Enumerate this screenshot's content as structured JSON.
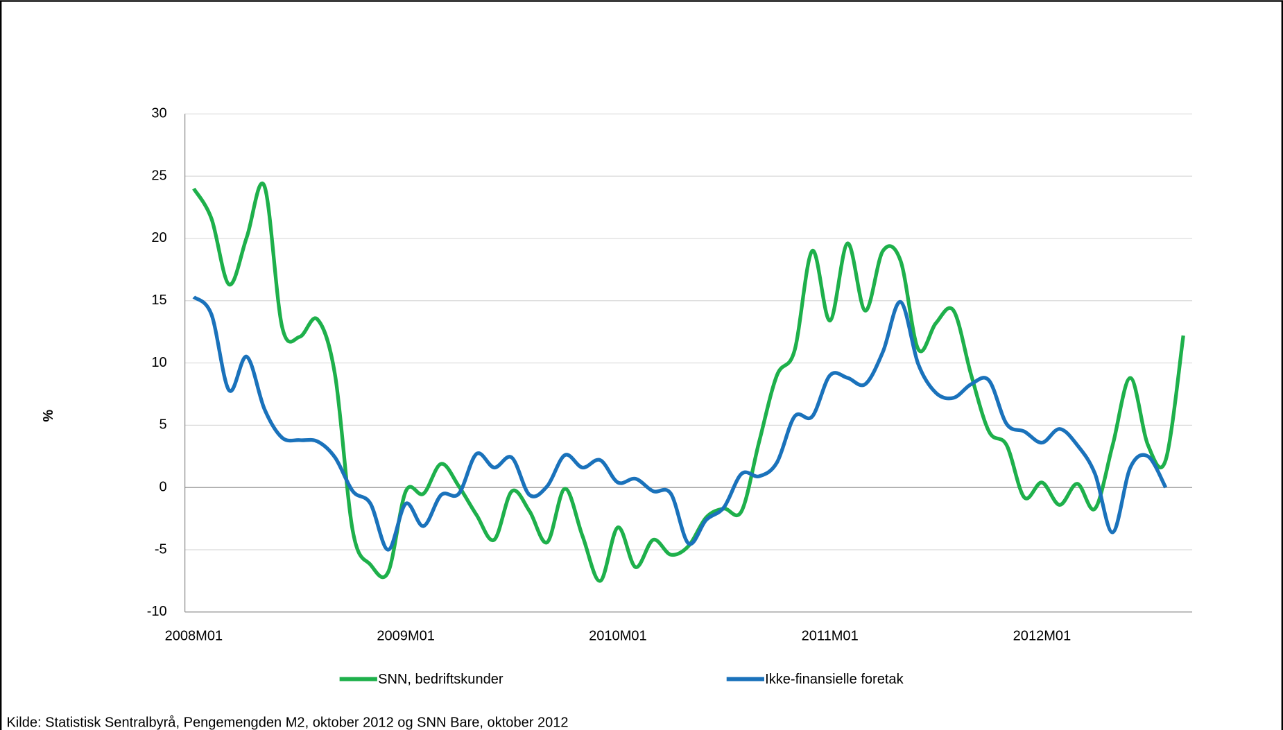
{
  "chart_data": {
    "type": "line",
    "y_label": "%",
    "source": "Kilde:  Statistisk Sentralbyrå, Pengemengden M2, oktober 2012 og SNN Bare, oktober 2012",
    "categories": [
      "2008M01",
      null,
      null,
      null,
      null,
      null,
      null,
      null,
      null,
      null,
      null,
      null,
      "2009M01",
      null,
      null,
      null,
      null,
      null,
      null,
      null,
      null,
      null,
      null,
      null,
      "2010M01",
      null,
      null,
      null,
      null,
      null,
      null,
      null,
      null,
      null,
      null,
      null,
      "2011M01",
      null,
      null,
      null,
      null,
      null,
      null,
      null,
      null,
      null,
      null,
      null,
      "2012M01",
      null,
      null,
      null,
      null,
      null,
      null,
      null,
      null
    ],
    "series": [
      {
        "name": "SNN, bedriftskunder",
        "color": "#1eb04b",
        "values": [
          24,
          21.6,
          16.3,
          20.1,
          24.2,
          12.9,
          12.1,
          13.5,
          9,
          -3.5,
          -6.2,
          -6.8,
          -0.3,
          -0.5,
          1.9,
          0.1,
          -2.2,
          -4.2,
          -0.3,
          -1.9,
          -4.4,
          -0.1,
          -3.9,
          -7.5,
          -3.2,
          -6.4,
          -4.2,
          -5.4,
          -4.7,
          -2.4,
          -1.7,
          -1.9,
          3.7,
          9,
          11,
          19,
          13.4,
          19.6,
          14.2,
          19,
          18.2,
          11.1,
          13.2,
          14.2,
          9,
          4.5,
          3.4,
          -0.8,
          0.4,
          -1.4,
          0.3,
          -1.7,
          3.4,
          8.8,
          3.4,
          2.2,
          12.2
        ]
      },
      {
        "name": "Ikke-finansielle foretak",
        "color": "#1a72bb",
        "values": [
          15.3,
          13.9,
          7.8,
          10.5,
          6.3,
          4,
          3.8,
          3.7,
          2.4,
          -0.3,
          -1.3,
          -5,
          -1.3,
          -3.1,
          -0.6,
          -0.5,
          2.7,
          1.6,
          2.4,
          -0.6,
          0.1,
          2.6,
          1.6,
          2.2,
          0.4,
          0.7,
          -0.3,
          -0.5,
          -4.5,
          -2.6,
          -1.6,
          1.1,
          0.9,
          2,
          5.7,
          5.7,
          9,
          8.8,
          8.3,
          10.9,
          14.9,
          9.9,
          7.6,
          7.2,
          8.3,
          8.6,
          5.1,
          4.5,
          3.6,
          4.7,
          3.4,
          1.1,
          -3.6,
          1.6,
          2.5,
          0,
          null
        ]
      }
    ],
    "ylim": [
      -10,
      30
    ],
    "yticks": [
      -10,
      -5,
      0,
      5,
      10,
      15,
      20,
      25,
      30
    ],
    "grid": true
  }
}
